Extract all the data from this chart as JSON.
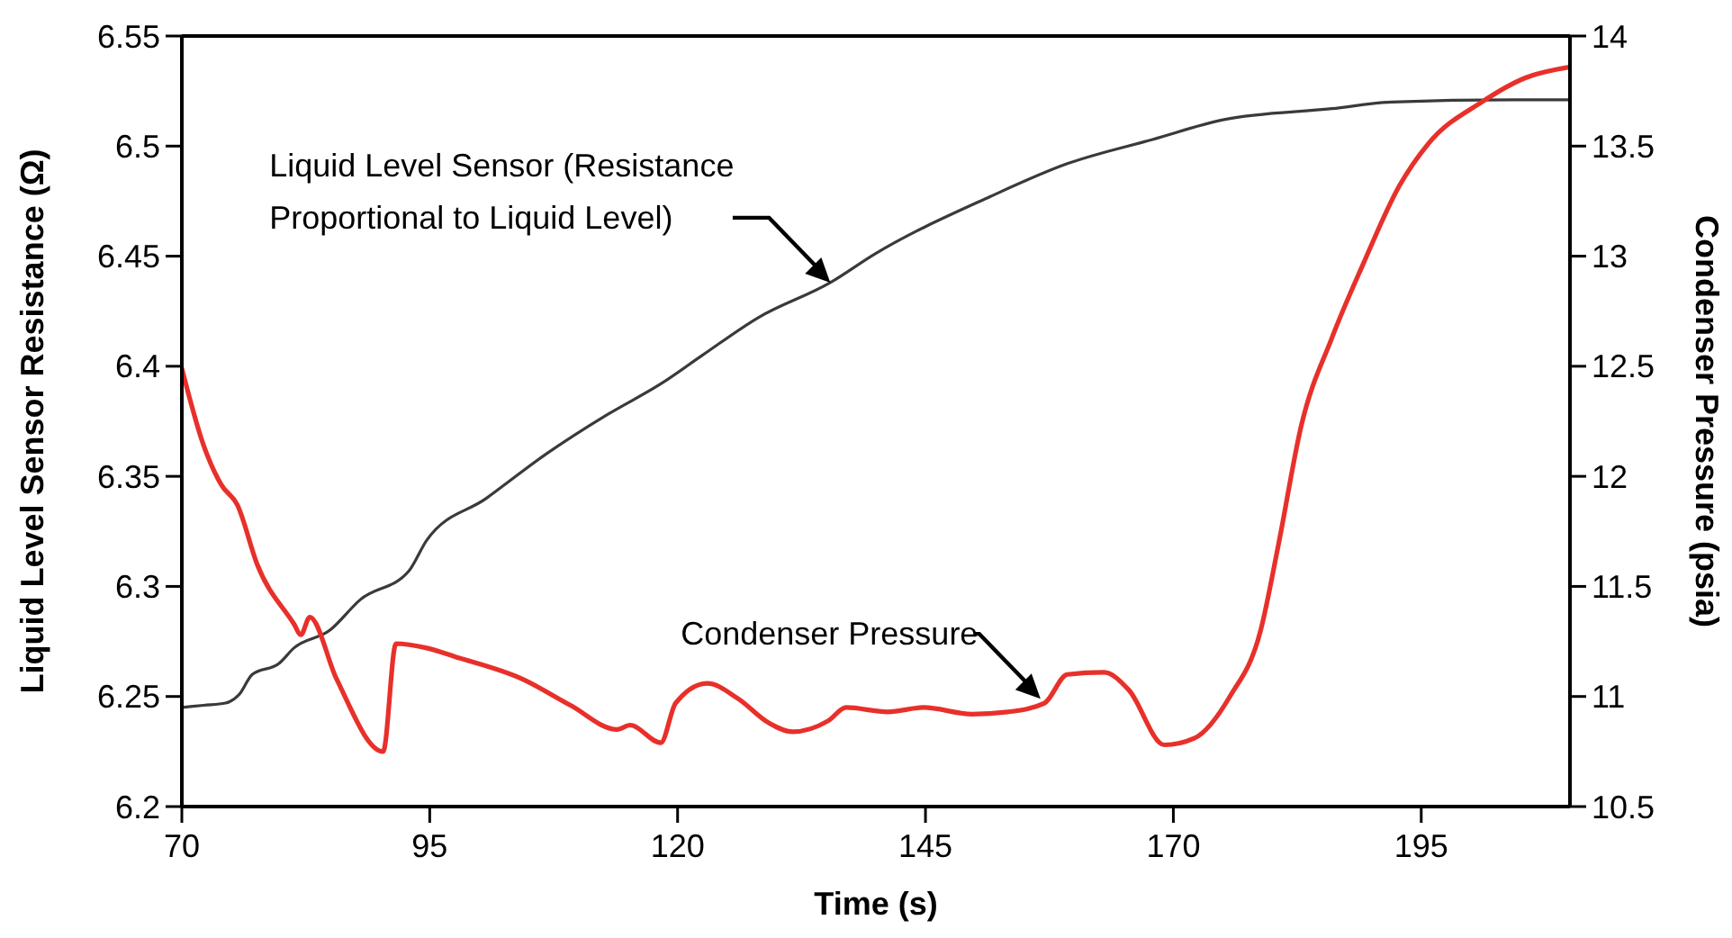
{
  "chart_data": {
    "type": "line",
    "xlabel": "Time (s)",
    "ylabel": "Liquid Level Sensor Resistance (Ω)",
    "y2label": "Condenser Pressure (psia)",
    "xlim": [
      70,
      210
    ],
    "xticks": [
      70,
      95,
      120,
      145,
      170,
      195
    ],
    "ylim": [
      6.2,
      6.55
    ],
    "yticks": [
      6.2,
      6.25,
      6.3,
      6.35,
      6.4,
      6.45,
      6.5,
      6.55
    ],
    "y2lim": [
      10.5,
      14
    ],
    "y2ticks": [
      10.5,
      11,
      11.5,
      12,
      12.5,
      13,
      13.5,
      14
    ],
    "grid": false,
    "line_style": "solid",
    "marker": "none",
    "series": [
      {
        "color": "#3a3a3a",
        "x": [
          70,
          72.2,
          74.4,
          75.8,
          77.1,
          79.8,
          81.3,
          84.9,
          88,
          92.9,
          94.7,
          100.7,
          106.7,
          112.9,
          118.3,
          122.5,
          128.1,
          135.4,
          139.9,
          151.5,
          159.3,
          167.9,
          175.1,
          186,
          192,
          204.2,
          210
        ],
        "values": [
          6.245,
          6.246,
          6.247,
          6.251,
          6.26,
          6.265,
          6.272,
          6.28,
          6.294,
          6.307,
          6.321,
          6.34,
          6.36,
          6.378,
          6.392,
          6.405,
          6.422,
          6.438,
          6.451,
          6.477,
          6.492,
          6.503,
          6.512,
          6.517,
          6.52,
          6.521,
          6.521
        ]
      },
      {
        "color": "#e8302a",
        "axis": "y2",
        "x": [
          70,
          72.2,
          74,
          75.6,
          77.6,
          81.3,
          82,
          82.9,
          85.6,
          90.3,
          91.6,
          94.7,
          97.6,
          104.3,
          109.2,
          113.9,
          115.2,
          118.3,
          119.8,
          123,
          126.1,
          129.2,
          131.6,
          135.2,
          137,
          141.2,
          144.8,
          149.7,
          153.3,
          157,
          159.3,
          163,
          165.5,
          169.1,
          172.1,
          175.7,
          178.8,
          180.6,
          182.9,
          186,
          189.1,
          192.8,
          195.7,
          201.1,
          205.5,
          210
        ],
        "values": [
          12.49,
          12.14,
          11.96,
          11.87,
          11.6,
          11.33,
          11.28,
          11.36,
          11.08,
          10.75,
          11.24,
          11.22,
          11.18,
          11.08,
          10.96,
          10.85,
          10.87,
          10.79,
          10.97,
          11.06,
          10.99,
          10.88,
          10.84,
          10.89,
          10.95,
          10.93,
          10.95,
          10.92,
          10.93,
          10.97,
          11.1,
          11.11,
          11.03,
          10.78,
          10.81,
          11,
          11.3,
          11.69,
          12.23,
          12.63,
          12.96,
          13.32,
          13.51,
          13.7,
          13.81,
          13.86
        ]
      }
    ],
    "annotations": [
      {
        "text": "Liquid Level Sensor (Resistance Proportional to Liquid Level)",
        "x": 135.4,
        "y": 6.438
      },
      {
        "text": "Condenser Pressure",
        "x": 156.6,
        "y": 6.249
      }
    ]
  }
}
